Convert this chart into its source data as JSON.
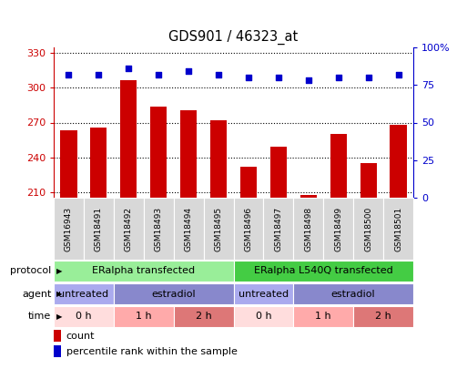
{
  "title": "GDS901 / 46323_at",
  "samples": [
    "GSM16943",
    "GSM18491",
    "GSM18492",
    "GSM18493",
    "GSM18494",
    "GSM18495",
    "GSM18496",
    "GSM18497",
    "GSM18498",
    "GSM18499",
    "GSM18500",
    "GSM18501"
  ],
  "counts": [
    263,
    266,
    307,
    284,
    281,
    272,
    232,
    249,
    207,
    260,
    235,
    268
  ],
  "percentiles": [
    82,
    82,
    86,
    82,
    84,
    82,
    80,
    80,
    78,
    80,
    80,
    82
  ],
  "ylim_left": [
    205,
    335
  ],
  "ylim_right": [
    0,
    100
  ],
  "yticks_left": [
    210,
    240,
    270,
    300,
    330
  ],
  "yticks_right": [
    0,
    25,
    50,
    75,
    100
  ],
  "bar_color": "#cc0000",
  "dot_color": "#0000cc",
  "protocol_row": {
    "groups": [
      {
        "label": "ERalpha transfected",
        "start": 0,
        "end": 6,
        "color": "#99ee99"
      },
      {
        "label": "ERalpha L540Q transfected",
        "start": 6,
        "end": 12,
        "color": "#44cc44"
      }
    ]
  },
  "agent_row": {
    "groups": [
      {
        "label": "untreated",
        "start": 0,
        "end": 2,
        "color": "#aaaaee"
      },
      {
        "label": "estradiol",
        "start": 2,
        "end": 6,
        "color": "#8888cc"
      },
      {
        "label": "untreated",
        "start": 6,
        "end": 8,
        "color": "#aaaaee"
      },
      {
        "label": "estradiol",
        "start": 8,
        "end": 12,
        "color": "#8888cc"
      }
    ]
  },
  "time_row": {
    "groups": [
      {
        "label": "0 h",
        "start": 0,
        "end": 2,
        "color": "#ffdddd"
      },
      {
        "label": "1 h",
        "start": 2,
        "end": 4,
        "color": "#ffaaaa"
      },
      {
        "label": "2 h",
        "start": 4,
        "end": 6,
        "color": "#dd7777"
      },
      {
        "label": "0 h",
        "start": 6,
        "end": 8,
        "color": "#ffdddd"
      },
      {
        "label": "1 h",
        "start": 8,
        "end": 10,
        "color": "#ffaaaa"
      },
      {
        "label": "2 h",
        "start": 10,
        "end": 12,
        "color": "#dd7777"
      }
    ]
  },
  "row_labels": [
    "protocol",
    "agent",
    "time"
  ],
  "legend_count_color": "#cc0000",
  "legend_pct_color": "#0000cc"
}
